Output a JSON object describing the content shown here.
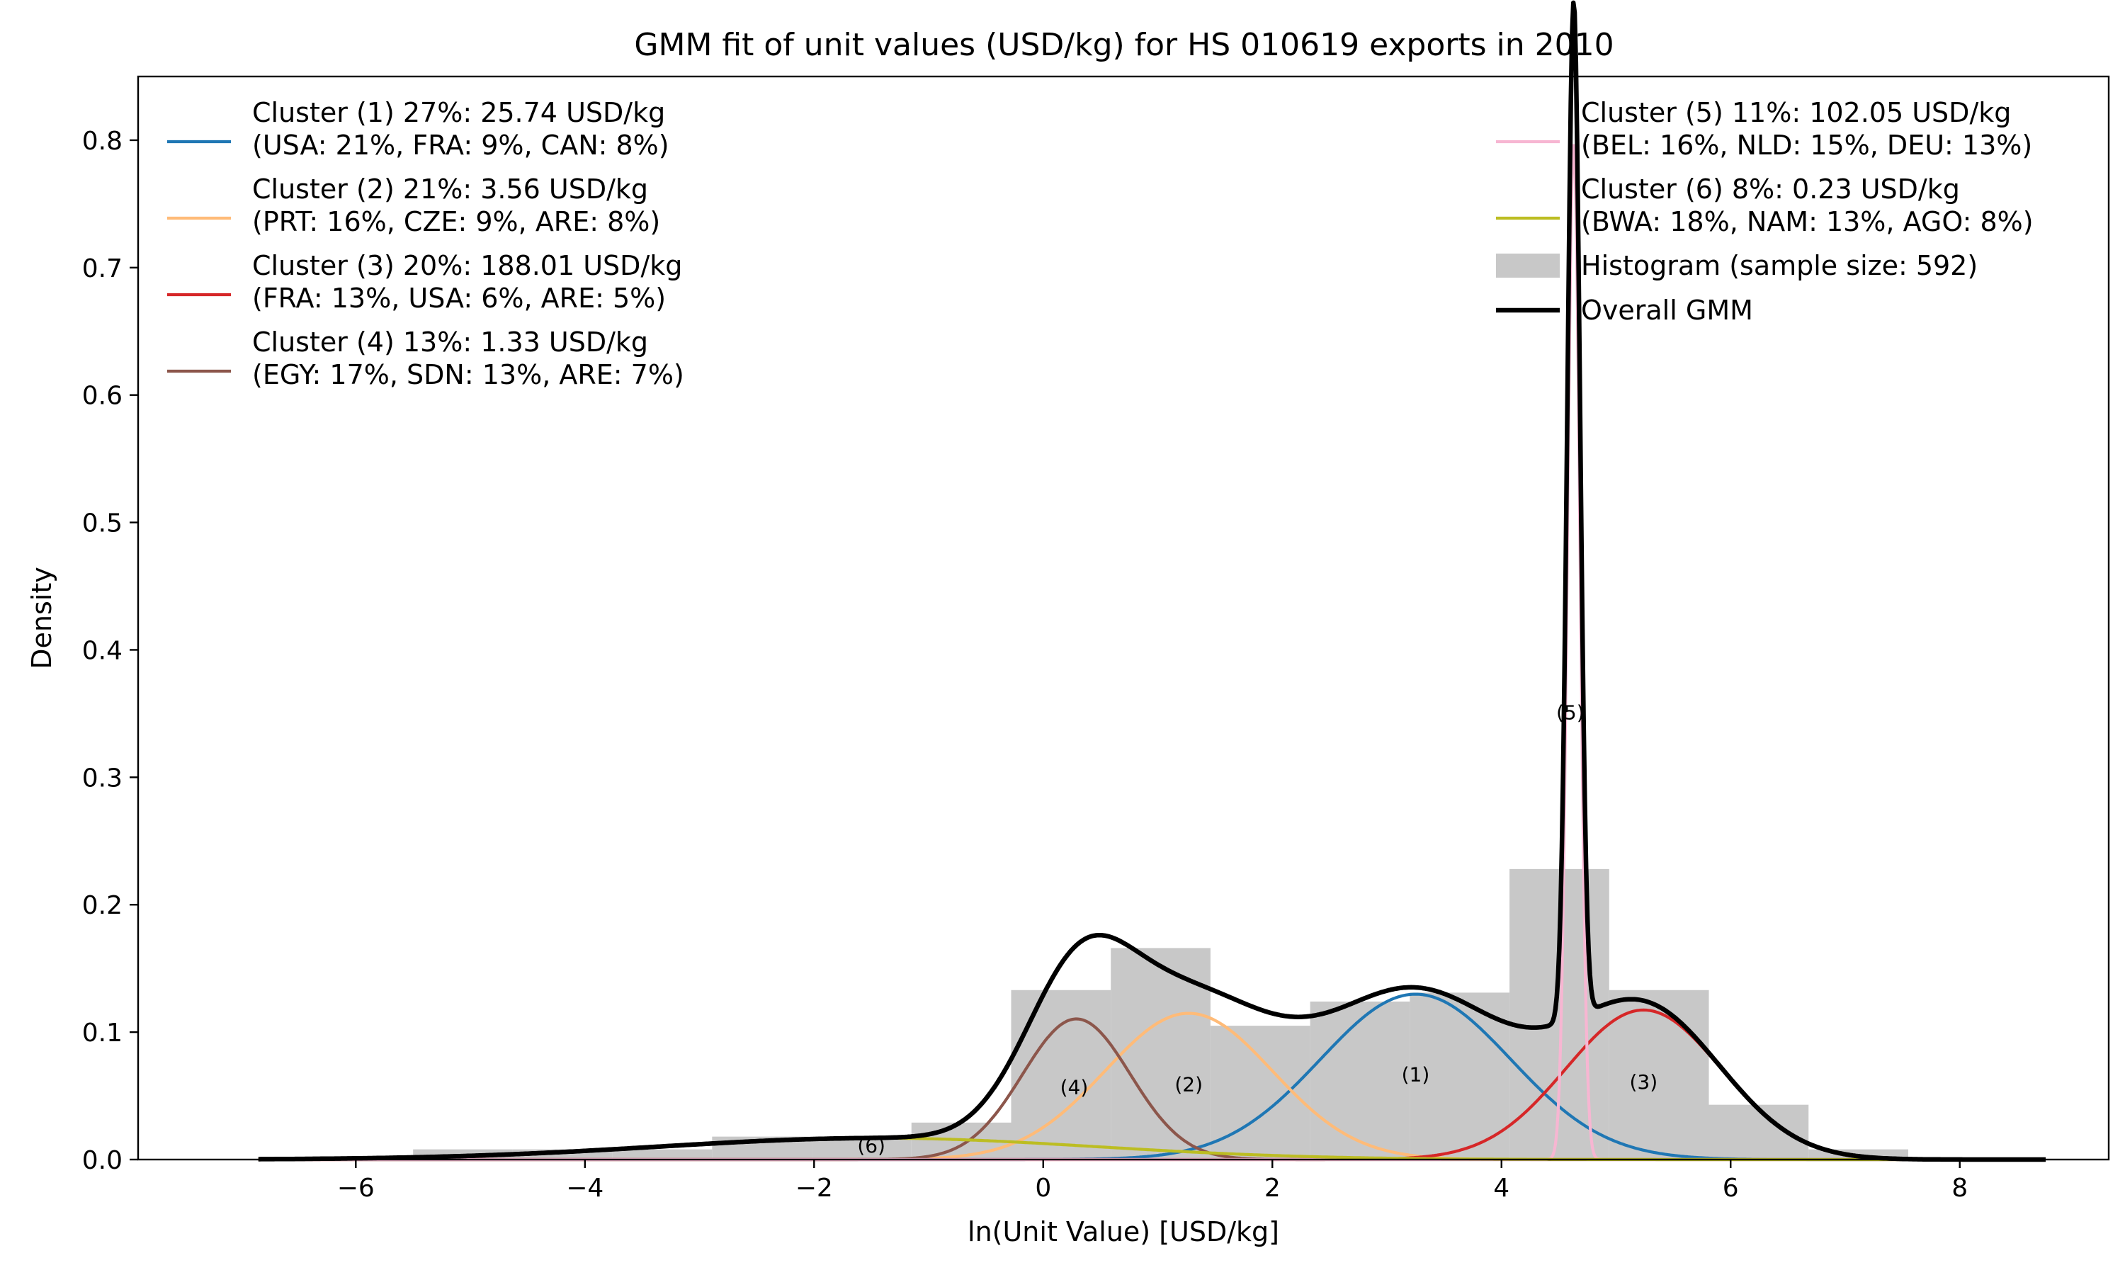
{
  "chart_data": {
    "type": "area",
    "title": "GMM fit of unit values (USD/kg) for HS 010619 exports in 2010",
    "xlabel": "ln(Unit Value) [USD/kg]",
    "ylabel": "Density",
    "xlim": [
      -7.9,
      9.3
    ],
    "ylim": [
      0,
      0.85
    ],
    "x_ticks": [
      -6,
      -4,
      -2,
      0,
      2,
      4,
      6,
      8
    ],
    "x_tick_labels": [
      "−6",
      "−4",
      "−2",
      "0",
      "2",
      "4",
      "6",
      "8"
    ],
    "y_ticks": [
      0.0,
      0.1,
      0.2,
      0.3,
      0.4,
      0.5,
      0.6,
      0.7,
      0.8
    ],
    "y_tick_labels": [
      "0.0",
      "0.1",
      "0.2",
      "0.3",
      "0.4",
      "0.5",
      "0.6",
      "0.7",
      "0.8"
    ],
    "grid": false,
    "curve_x_range": [
      -6.85,
      8.75
    ],
    "histogram": {
      "label": "Histogram (sample size: 592)",
      "color": "#c8c8c8",
      "bin_edges": [
        -5.5,
        -4.63,
        -3.76,
        -2.89,
        -2.02,
        -1.15,
        -0.28,
        0.59,
        1.46,
        2.33,
        3.2,
        4.07,
        4.94,
        5.81,
        6.68,
        7.55
      ],
      "density": [
        0.008,
        0.008,
        0.008,
        0.018,
        0.018,
        0.029,
        0.133,
        0.166,
        0.105,
        0.124,
        0.131,
        0.228,
        0.133,
        0.043,
        0.008
      ]
    },
    "clusters": [
      {
        "id": 1,
        "tag": "(1)",
        "line1": "Cluster (1) 27%: 25.74 USD/kg",
        "line2": "(USA: 21%, FRA: 9%, CAN: 8%)",
        "color": "#1f77b4",
        "weight": 0.27,
        "mean": 3.25,
        "sd": 0.83,
        "tag_x": 3.25,
        "tag_y": 0.066
      },
      {
        "id": 2,
        "tag": "(2)",
        "line1": "Cluster (2) 21%: 3.56 USD/kg",
        "line2": "(PRT: 16%, CZE: 9%, ARE: 8%)",
        "color": "#ffbb78",
        "weight": 0.21,
        "mean": 1.27,
        "sd": 0.73,
        "tag_x": 1.27,
        "tag_y": 0.058
      },
      {
        "id": 3,
        "tag": "(3)",
        "line1": "Cluster (3) 20%: 188.01 USD/kg",
        "line2": "(FRA: 13%, USA: 6%, ARE: 5%)",
        "color": "#d62728",
        "weight": 0.2,
        "mean": 5.24,
        "sd": 0.68,
        "tag_x": 5.24,
        "tag_y": 0.06
      },
      {
        "id": 4,
        "tag": "(4)",
        "line1": "Cluster (4) 13%: 1.33 USD/kg",
        "line2": "(EGY: 17%, SDN: 13%, ARE: 7%)",
        "color": "#8c564b",
        "weight": 0.13,
        "mean": 0.29,
        "sd": 0.47,
        "tag_x": 0.27,
        "tag_y": 0.056
      },
      {
        "id": 5,
        "tag": "(5)",
        "line1": "Cluster (5) 11%: 102.05 USD/kg",
        "line2": "(BEL: 16%, NLD: 15%, DEU: 13%)",
        "color": "#f7b6d2",
        "weight": 0.11,
        "mean": 4.63,
        "sd": 0.055,
        "tag_x": 4.6,
        "tag_y": 0.35
      },
      {
        "id": 6,
        "tag": "(6)",
        "line1": "Cluster (6) 8%: 0.23 USD/kg",
        "line2": "(BWA: 18%, NAM: 13%, AGO: 8%)",
        "color": "#bcbd22",
        "weight": 0.08,
        "mean": -1.45,
        "sd": 1.9,
        "tag_x": -1.5,
        "tag_y": 0.01
      }
    ],
    "overall": {
      "label": "Overall GMM",
      "color": "#000000"
    },
    "legend": {
      "placement": "upper-left and upper-right"
    }
  }
}
